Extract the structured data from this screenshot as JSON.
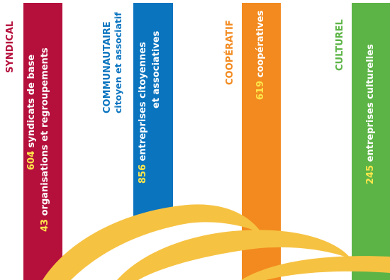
{
  "colors": {
    "syndical": "#b5103c",
    "communautaire": "#0a74bf",
    "cooperatif": "#f28a1f",
    "culturel": "#5cb446",
    "arc": "#f6c242",
    "highlight": "#fde64b"
  },
  "categories": [
    {
      "key": "syndical",
      "title": "SYNDICAL",
      "lines": [
        {
          "number": "604",
          "text": "syndicats de base"
        },
        {
          "number": "43",
          "text": "organisations et regroupements"
        }
      ]
    },
    {
      "key": "communautaire",
      "title": "COMMUNAUTAIRE",
      "subtitle": "citoyen et associatif",
      "lines": [
        {
          "number": "856",
          "text": "entreprises citoyennes"
        },
        {
          "number": "",
          "text": "et associatives"
        }
      ]
    },
    {
      "key": "cooperatif",
      "title": "COOPÉRATIF",
      "lines": [
        {
          "number": "619",
          "text": "coopératives"
        }
      ]
    },
    {
      "key": "culturel",
      "title": "CULTUREL",
      "lines": [
        {
          "number": "245",
          "text": "entreprises culturelles"
        }
      ]
    }
  ]
}
